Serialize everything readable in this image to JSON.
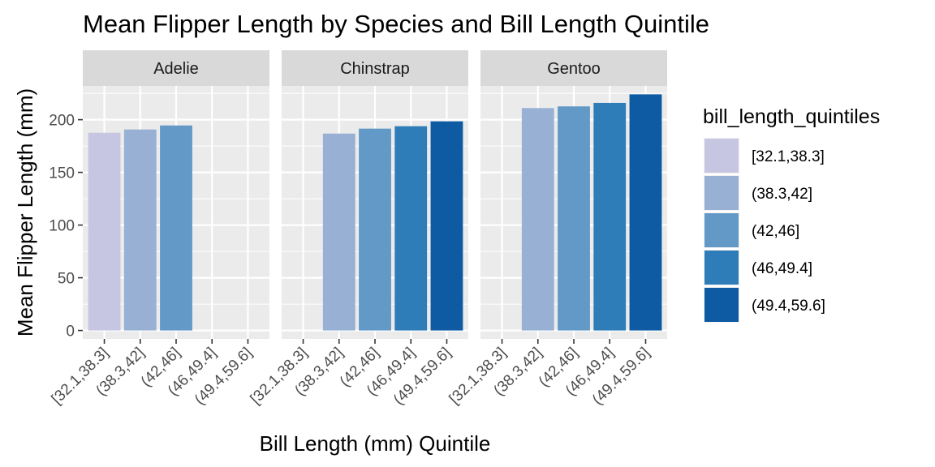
{
  "chart_data": {
    "type": "bar",
    "title": "Mean Flipper Length by Species and Bill Length Quintile",
    "xlabel": "Bill Length (mm) Quintile",
    "ylabel": "Mean Flipper Length (mm)",
    "ylim": [
      -8,
      232
    ],
    "yticks": [
      0,
      50,
      100,
      150,
      200
    ],
    "grid": true,
    "facet_labels": [
      "Adelie",
      "Chinstrap",
      "Gentoo"
    ],
    "categories": [
      "[32.1,38.3]",
      "(38.3,42]",
      "(42,46]",
      "(46,49.4]",
      "(49.4,59.6]"
    ],
    "colors": [
      "#c6c6e2",
      "#97b0d4",
      "#6399c7",
      "#2e7db8",
      "#0e5aa3"
    ],
    "legend": {
      "title": "bill_length_quintiles",
      "position": "right",
      "entries": [
        "[32.1,38.3]",
        "(38.3,42]",
        "(42,46]",
        "(46,49.4]",
        "(49.4,59.6]"
      ]
    },
    "facets": [
      {
        "name": "Adelie",
        "values": [
          187.6,
          190.7,
          194.5,
          null,
          null
        ]
      },
      {
        "name": "Chinstrap",
        "values": [
          null,
          186.8,
          191.5,
          193.8,
          198.4
        ]
      },
      {
        "name": "Gentoo",
        "values": [
          null,
          211.0,
          212.6,
          215.9,
          224.0
        ]
      }
    ]
  }
}
